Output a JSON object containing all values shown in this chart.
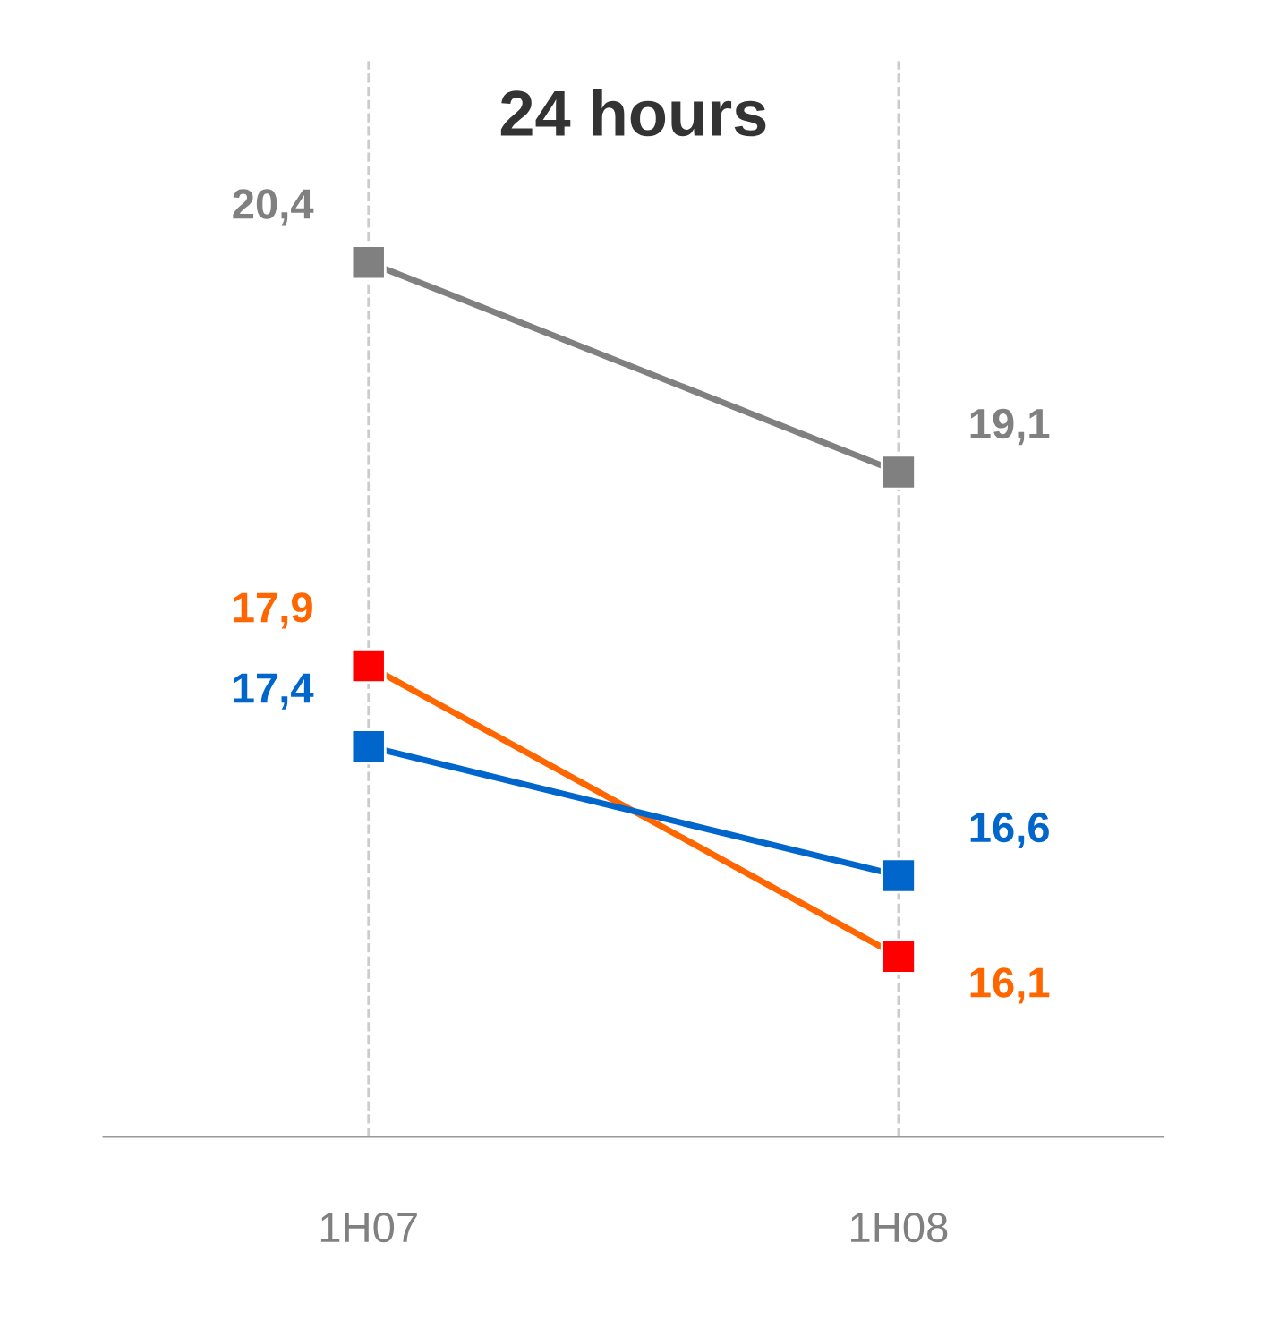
{
  "chart_data": {
    "type": "line",
    "title": "24 hours",
    "categories": [
      "1H07",
      "1H08"
    ],
    "grid": "x",
    "marker": "square",
    "line_style": "solid",
    "legend": false,
    "series": [
      {
        "color": "#808080",
        "values": [
          20.4,
          19.1
        ],
        "value_labels": [
          "20,4",
          "19,1"
        ]
      },
      {
        "color": "#ff6600",
        "colors": [
          "#ff0000",
          "#ff0000"
        ],
        "values": [
          17.9,
          16.1
        ],
        "value_labels": [
          "17,9",
          "16,1"
        ]
      },
      {
        "color": "#0066cc",
        "values": [
          17.4,
          16.6
        ],
        "value_labels": [
          "17,4",
          "16,6"
        ]
      }
    ]
  }
}
